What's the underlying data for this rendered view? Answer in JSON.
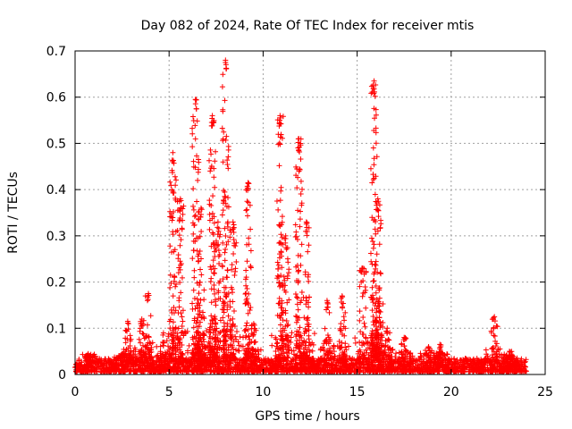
{
  "chart_data": {
    "type": "scatter",
    "title": "Day 082 of 2024, Rate Of TEC Index for receiver mtis",
    "xlabel": "GPS time / hours",
    "ylabel": "ROTI / TECUs",
    "xlim": [
      0,
      25
    ],
    "ylim": [
      0,
      0.7
    ],
    "xticks": [
      0,
      5,
      10,
      15,
      20,
      25
    ],
    "yticks": [
      0,
      0.1,
      0.2,
      0.3,
      0.4,
      0.5,
      0.6,
      0.7
    ],
    "grid": true,
    "marker": "+",
    "color": "#ff0000",
    "x_range_of_data": [
      0,
      24
    ],
    "baseline_band": [
      0.005,
      0.035
    ],
    "peaks": [
      {
        "x": 0.7,
        "y": 0.045
      },
      {
        "x": 2.5,
        "y": 0.045
      },
      {
        "x": 2.8,
        "y": 0.115
      },
      {
        "x": 3.55,
        "y": 0.12
      },
      {
        "x": 3.9,
        "y": 0.175
      },
      {
        "x": 4.7,
        "y": 0.09
      },
      {
        "x": 5.2,
        "y": 0.48
      },
      {
        "x": 5.6,
        "y": 0.38
      },
      {
        "x": 6.4,
        "y": 0.595
      },
      {
        "x": 6.7,
        "y": 0.36
      },
      {
        "x": 7.3,
        "y": 0.56
      },
      {
        "x": 7.6,
        "y": 0.33
      },
      {
        "x": 8.0,
        "y": 0.68
      },
      {
        "x": 8.4,
        "y": 0.33
      },
      {
        "x": 9.2,
        "y": 0.415
      },
      {
        "x": 9.5,
        "y": 0.11
      },
      {
        "x": 10.9,
        "y": 0.56
      },
      {
        "x": 11.2,
        "y": 0.3
      },
      {
        "x": 11.9,
        "y": 0.51
      },
      {
        "x": 12.3,
        "y": 0.33
      },
      {
        "x": 13.4,
        "y": 0.16
      },
      {
        "x": 14.2,
        "y": 0.17
      },
      {
        "x": 15.3,
        "y": 0.23
      },
      {
        "x": 15.9,
        "y": 0.635
      },
      {
        "x": 16.1,
        "y": 0.38
      },
      {
        "x": 16.2,
        "y": 0.165
      },
      {
        "x": 16.6,
        "y": 0.1
      },
      {
        "x": 17.5,
        "y": 0.08
      },
      {
        "x": 18.8,
        "y": 0.06
      },
      {
        "x": 19.4,
        "y": 0.065
      },
      {
        "x": 22.3,
        "y": 0.125
      },
      {
        "x": 23.1,
        "y": 0.05
      }
    ]
  }
}
